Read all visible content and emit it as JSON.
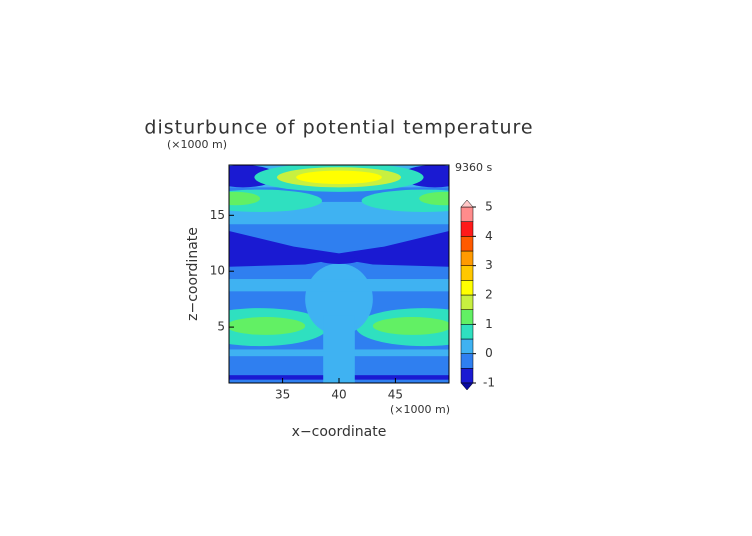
{
  "chart_data": {
    "type": "contour",
    "title": "disturbunce of potential temperature",
    "xlabel": "x−coordinate",
    "ylabel": "z−coordinate",
    "x_unit": "(×1000 m)",
    "y_unit": "(×1000 m)",
    "time_label": "9360 s",
    "xlim": [
      30.25,
      49.75
    ],
    "ylim": [
      0,
      19.5
    ],
    "xticks": [
      35,
      40,
      45
    ],
    "yticks": [
      5,
      10,
      15
    ],
    "colorbar": {
      "levels": [
        -1,
        -0.5,
        0,
        0.5,
        1,
        1.5,
        2,
        2.5,
        3,
        3.5,
        4,
        4.5,
        5
      ],
      "ticks": [
        -1,
        0,
        1,
        2,
        3,
        4,
        5
      ],
      "colors": [
        "#1a1ad2",
        "#2f7ff0",
        "#3fb2f2",
        "#2fe0c0",
        "#62f064",
        "#c8f040",
        "#ffff00",
        "#ffc800",
        "#ff9a00",
        "#ff5a00",
        "#ff1a1a",
        "#ff8c8c"
      ],
      "under_color": "#0a0aa0",
      "over_color": "#ffc8c8"
    }
  }
}
